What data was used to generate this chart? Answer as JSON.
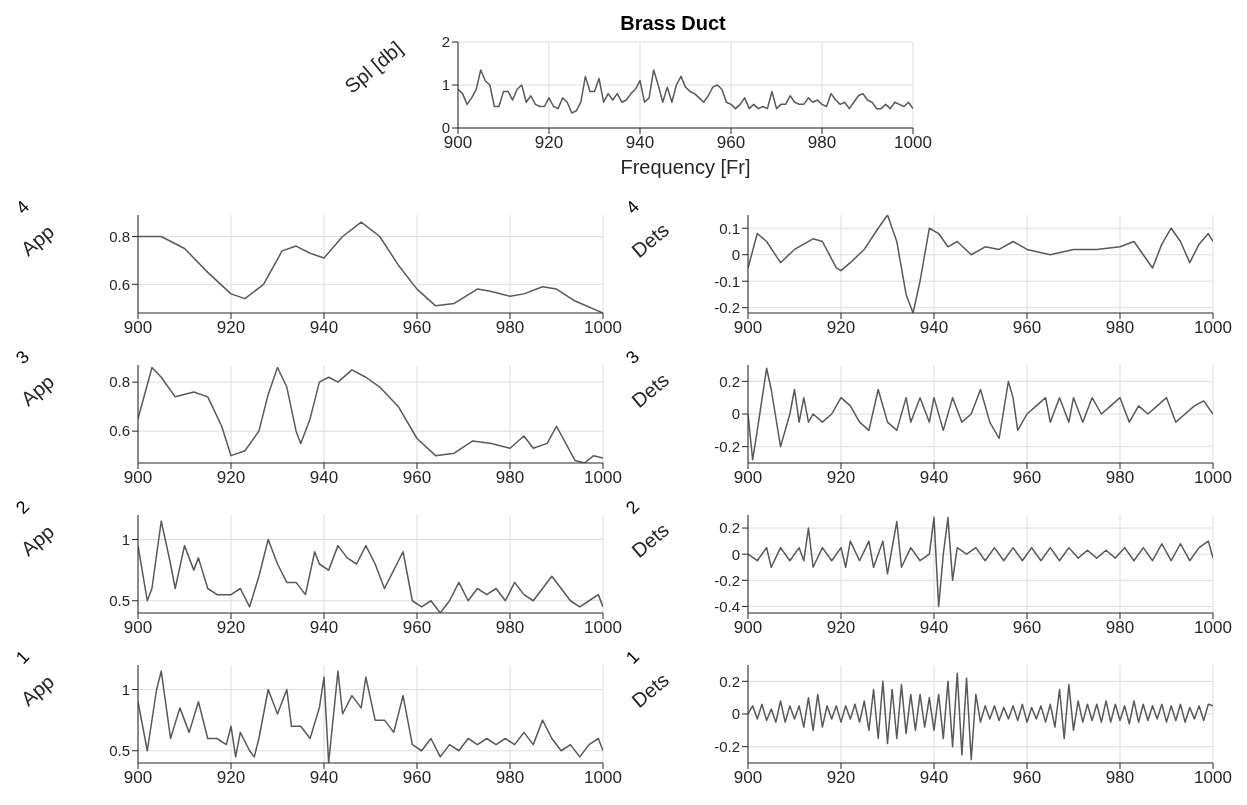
{
  "chart_data": [
    {
      "type": "line",
      "title": "Brass Duct",
      "xlabel": "Frequency [Fr]",
      "ylabel": "Spl [db]",
      "color": "#595959",
      "xlim": [
        900,
        1000
      ],
      "xticks": [
        900,
        920,
        940,
        960,
        980,
        1000
      ],
      "ylim": [
        0,
        2
      ],
      "yticks": [
        0,
        1,
        2
      ],
      "grid": true,
      "x": [
        900,
        901,
        902,
        903,
        904,
        905,
        906,
        907,
        908,
        909,
        910,
        911,
        912,
        913,
        914,
        915,
        916,
        917,
        918,
        919,
        920,
        921,
        922,
        923,
        924,
        925,
        926,
        927,
        928,
        929,
        930,
        931,
        932,
        933,
        934,
        935,
        936,
        937,
        938,
        939,
        940,
        941,
        942,
        943,
        944,
        945,
        946,
        947,
        948,
        949,
        950,
        951,
        952,
        953,
        954,
        955,
        956,
        957,
        958,
        959,
        960,
        961,
        962,
        963,
        964,
        965,
        966,
        967,
        968,
        969,
        970,
        971,
        972,
        973,
        974,
        975,
        976,
        977,
        978,
        979,
        980,
        981,
        982,
        983,
        984,
        985,
        986,
        987,
        988,
        989,
        990,
        991,
        992,
        993,
        994,
        995,
        996,
        997,
        998,
        999,
        1000
      ],
      "values": [
        0.9,
        0.8,
        0.55,
        0.7,
        0.9,
        1.35,
        1.1,
        1.0,
        0.5,
        0.5,
        0.85,
        0.85,
        0.65,
        0.9,
        1.0,
        0.6,
        0.75,
        0.55,
        0.5,
        0.5,
        0.7,
        0.5,
        0.45,
        0.7,
        0.6,
        0.35,
        0.4,
        0.6,
        1.2,
        0.85,
        0.85,
        1.15,
        0.6,
        0.8,
        0.65,
        0.8,
        0.6,
        0.65,
        0.8,
        0.9,
        1.1,
        0.6,
        0.7,
        1.35,
        1.0,
        0.6,
        0.95,
        0.6,
        1.0,
        1.2,
        0.95,
        0.85,
        0.8,
        0.7,
        0.6,
        0.75,
        0.95,
        1.0,
        0.9,
        0.6,
        0.55,
        0.45,
        0.55,
        0.7,
        0.45,
        0.55,
        0.45,
        0.5,
        0.45,
        0.85,
        0.45,
        0.55,
        0.55,
        0.75,
        0.6,
        0.55,
        0.55,
        0.7,
        0.6,
        0.65,
        0.55,
        0.5,
        0.8,
        0.65,
        0.55,
        0.6,
        0.45,
        0.6,
        0.75,
        0.8,
        0.65,
        0.6,
        0.45,
        0.45,
        0.55,
        0.45,
        0.6,
        0.55,
        0.5,
        0.6,
        0.45
      ]
    },
    {
      "type": "line",
      "title": "4",
      "ylabel": "App",
      "color": "#595959",
      "xlim": [
        900,
        1000
      ],
      "xticks": [
        900,
        920,
        940,
        960,
        980,
        1000
      ],
      "ylim": [
        0.48,
        0.89
      ],
      "yticks": [
        0.6,
        0.8
      ],
      "grid": true,
      "x": [
        900,
        905,
        910,
        915,
        920,
        923,
        927,
        931,
        934,
        937,
        940,
        944,
        948,
        952,
        956,
        960,
        964,
        968,
        973,
        976,
        980,
        983,
        987,
        990,
        994,
        1000
      ],
      "values": [
        0.8,
        0.8,
        0.75,
        0.65,
        0.56,
        0.54,
        0.6,
        0.74,
        0.76,
        0.73,
        0.71,
        0.8,
        0.86,
        0.8,
        0.68,
        0.58,
        0.51,
        0.52,
        0.58,
        0.57,
        0.55,
        0.56,
        0.59,
        0.58,
        0.53,
        0.48
      ]
    },
    {
      "type": "line",
      "title": "4",
      "ylabel": "Dets",
      "color": "#595959",
      "xlim": [
        900,
        1000
      ],
      "xticks": [
        900,
        920,
        940,
        960,
        980,
        1000
      ],
      "ylim": [
        -0.22,
        0.15
      ],
      "yticks": [
        -0.2,
        -0.1,
        0,
        0.1
      ],
      "grid": true,
      "x": [
        900,
        902,
        904,
        907,
        910,
        914,
        916,
        919,
        920,
        922,
        925,
        928,
        930,
        932,
        934,
        935.5,
        937,
        939,
        941,
        943,
        945,
        948,
        951,
        954,
        957,
        960,
        965,
        970,
        975,
        980,
        983,
        985,
        987,
        989,
        991,
        993,
        995,
        997,
        999,
        1000
      ],
      "values": [
        -0.05,
        0.08,
        0.05,
        -0.03,
        0.02,
        0.06,
        0.05,
        -0.05,
        -0.06,
        -0.03,
        0.02,
        0.1,
        0.15,
        0.05,
        -0.15,
        -0.22,
        -0.1,
        0.1,
        0.08,
        0.03,
        0.05,
        0.0,
        0.03,
        0.02,
        0.05,
        0.02,
        0.0,
        0.02,
        0.02,
        0.03,
        0.05,
        0.0,
        -0.05,
        0.04,
        0.1,
        0.05,
        -0.03,
        0.04,
        0.08,
        0.05
      ]
    },
    {
      "type": "line",
      "title": "3",
      "ylabel": "App",
      "color": "#595959",
      "xlim": [
        900,
        1000
      ],
      "xticks": [
        900,
        920,
        940,
        960,
        980,
        1000
      ],
      "ylim": [
        0.47,
        0.87
      ],
      "yticks": [
        0.6,
        0.8
      ],
      "grid": true,
      "x": [
        900,
        903,
        905,
        908,
        912,
        915,
        918,
        920,
        923,
        926,
        928,
        930,
        932,
        934,
        935,
        937,
        939,
        941,
        943,
        946,
        949,
        952,
        956,
        960,
        964,
        968,
        972,
        976,
        980,
        983,
        985,
        988,
        990,
        992,
        994,
        996,
        998,
        1000
      ],
      "values": [
        0.65,
        0.86,
        0.82,
        0.74,
        0.76,
        0.74,
        0.62,
        0.5,
        0.52,
        0.6,
        0.75,
        0.86,
        0.78,
        0.6,
        0.55,
        0.65,
        0.8,
        0.82,
        0.8,
        0.85,
        0.82,
        0.78,
        0.7,
        0.57,
        0.5,
        0.51,
        0.56,
        0.55,
        0.53,
        0.58,
        0.53,
        0.55,
        0.62,
        0.55,
        0.48,
        0.47,
        0.5,
        0.49
      ]
    },
    {
      "type": "line",
      "title": "3",
      "ylabel": "Dets",
      "color": "#595959",
      "xlim": [
        900,
        1000
      ],
      "xticks": [
        900,
        920,
        940,
        960,
        980,
        1000
      ],
      "ylim": [
        -0.3,
        0.3
      ],
      "yticks": [
        -0.2,
        0,
        0.2
      ],
      "grid": true,
      "x": [
        900,
        901,
        902,
        904,
        905,
        907,
        909,
        910,
        911,
        912,
        913,
        914,
        916,
        918,
        920,
        922,
        924,
        926,
        928,
        930,
        932,
        934,
        935,
        937,
        939,
        940,
        942,
        944,
        946,
        948,
        950,
        952,
        954,
        956,
        957,
        958,
        960,
        962,
        964,
        965,
        967,
        969,
        970,
        972,
        974,
        976,
        978,
        980,
        982,
        984,
        986,
        988,
        990,
        992,
        994,
        996,
        998,
        1000
      ],
      "values": [
        0.0,
        -0.28,
        -0.1,
        0.28,
        0.15,
        -0.2,
        0.0,
        0.15,
        -0.05,
        0.1,
        -0.05,
        0.0,
        -0.05,
        0.0,
        0.1,
        0.05,
        -0.05,
        -0.1,
        0.15,
        -0.05,
        -0.1,
        0.1,
        -0.05,
        0.1,
        -0.05,
        0.1,
        -0.1,
        0.1,
        -0.05,
        0.0,
        0.15,
        -0.05,
        -0.15,
        0.2,
        0.1,
        -0.1,
        0.0,
        0.05,
        0.1,
        -0.05,
        0.1,
        -0.05,
        0.1,
        -0.05,
        0.1,
        0.0,
        0.05,
        0.1,
        -0.05,
        0.05,
        0.0,
        0.05,
        0.1,
        -0.05,
        0.0,
        0.05,
        0.08,
        0.0
      ]
    },
    {
      "type": "line",
      "title": "2",
      "ylabel": "App",
      "color": "#595959",
      "xlim": [
        900,
        1000
      ],
      "xticks": [
        900,
        920,
        940,
        960,
        980,
        1000
      ],
      "ylim": [
        0.4,
        1.2
      ],
      "yticks": [
        0.5,
        1
      ],
      "grid": true,
      "x": [
        900,
        902,
        903,
        905,
        907,
        908,
        910,
        911,
        912,
        913,
        915,
        917,
        920,
        922,
        924,
        926,
        928,
        930,
        932,
        934,
        936,
        938,
        939,
        941,
        943,
        945,
        947,
        949,
        951,
        953,
        955,
        957,
        959,
        961,
        963,
        965,
        967,
        969,
        971,
        973,
        975,
        977,
        979,
        981,
        983,
        985,
        987,
        989,
        991,
        993,
        995,
        997,
        999,
        1000
      ],
      "values": [
        0.95,
        0.5,
        0.6,
        1.15,
        0.8,
        0.6,
        0.95,
        0.85,
        0.75,
        0.85,
        0.6,
        0.55,
        0.55,
        0.6,
        0.45,
        0.7,
        1.0,
        0.8,
        0.65,
        0.65,
        0.55,
        0.9,
        0.8,
        0.75,
        0.95,
        0.85,
        0.8,
        0.95,
        0.8,
        0.6,
        0.75,
        0.9,
        0.5,
        0.45,
        0.5,
        0.4,
        0.5,
        0.65,
        0.5,
        0.6,
        0.55,
        0.6,
        0.5,
        0.65,
        0.55,
        0.5,
        0.6,
        0.7,
        0.6,
        0.5,
        0.45,
        0.5,
        0.55,
        0.45
      ]
    },
    {
      "type": "line",
      "title": "2",
      "ylabel": "Dets",
      "color": "#595959",
      "xlim": [
        900,
        1000
      ],
      "xticks": [
        900,
        920,
        940,
        960,
        980,
        1000
      ],
      "ylim": [
        -0.45,
        0.3
      ],
      "yticks": [
        -0.4,
        -0.2,
        0,
        0.2
      ],
      "grid": true,
      "x": [
        900,
        902,
        904,
        905,
        907,
        909,
        911,
        912,
        913,
        914,
        916,
        918,
        920,
        921,
        922,
        924,
        926,
        927,
        929,
        930,
        932,
        933,
        935,
        937,
        939,
        940,
        941,
        942,
        943,
        944,
        945,
        947,
        949,
        951,
        953,
        955,
        957,
        959,
        961,
        963,
        965,
        967,
        969,
        971,
        973,
        975,
        977,
        979,
        981,
        983,
        985,
        987,
        989,
        991,
        993,
        995,
        997,
        999,
        1000
      ],
      "values": [
        0.0,
        -0.05,
        0.05,
        -0.1,
        0.05,
        -0.05,
        0.05,
        -0.05,
        0.2,
        -0.1,
        0.05,
        -0.05,
        0.05,
        -0.1,
        0.1,
        -0.05,
        0.1,
        -0.1,
        0.1,
        -0.15,
        0.25,
        -0.1,
        0.05,
        -0.05,
        0.0,
        0.28,
        -0.4,
        0.0,
        0.28,
        -0.2,
        0.05,
        0.0,
        0.05,
        -0.05,
        0.05,
        -0.05,
        0.05,
        -0.05,
        0.05,
        -0.05,
        0.05,
        -0.05,
        0.05,
        -0.03,
        0.03,
        -0.03,
        0.03,
        -0.03,
        0.05,
        -0.05,
        0.05,
        -0.05,
        0.08,
        -0.05,
        0.08,
        -0.05,
        0.05,
        0.1,
        -0.03
      ]
    },
    {
      "type": "line",
      "title": "1",
      "ylabel": "App",
      "color": "#595959",
      "xlim": [
        900,
        1000
      ],
      "xticks": [
        900,
        920,
        940,
        960,
        980,
        1000
      ],
      "ylim": [
        0.4,
        1.2
      ],
      "yticks": [
        0.5,
        1
      ],
      "grid": true,
      "x": [
        900,
        902,
        904,
        905,
        907,
        909,
        911,
        913,
        915,
        917,
        919,
        920,
        921,
        922,
        924,
        925,
        926,
        928,
        930,
        932,
        933,
        935,
        937,
        939,
        940,
        941,
        943,
        944,
        946,
        948,
        949,
        951,
        953,
        955,
        957,
        959,
        961,
        963,
        965,
        967,
        969,
        971,
        973,
        975,
        977,
        979,
        981,
        983,
        985,
        987,
        989,
        991,
        993,
        995,
        997,
        999,
        1000
      ],
      "values": [
        0.9,
        0.5,
        1.0,
        1.15,
        0.6,
        0.85,
        0.65,
        0.9,
        0.6,
        0.6,
        0.55,
        0.7,
        0.45,
        0.65,
        0.5,
        0.45,
        0.6,
        1.0,
        0.8,
        1.0,
        0.7,
        0.7,
        0.6,
        0.85,
        1.1,
        0.4,
        1.15,
        0.8,
        0.95,
        0.85,
        1.1,
        0.75,
        0.75,
        0.65,
        0.95,
        0.55,
        0.5,
        0.6,
        0.45,
        0.55,
        0.5,
        0.6,
        0.55,
        0.6,
        0.55,
        0.6,
        0.55,
        0.65,
        0.55,
        0.75,
        0.6,
        0.5,
        0.55,
        0.45,
        0.55,
        0.6,
        0.5
      ]
    },
    {
      "type": "line",
      "title": "1",
      "ylabel": "Dets",
      "color": "#595959",
      "xlim": [
        900,
        1000
      ],
      "xticks": [
        900,
        920,
        940,
        960,
        980,
        1000
      ],
      "ylim": [
        -0.3,
        0.3
      ],
      "yticks": [
        -0.2,
        0,
        0.2
      ],
      "grid": true,
      "x": [
        900,
        901,
        902,
        903,
        904,
        905,
        906,
        907,
        908,
        909,
        910,
        911,
        912,
        913,
        914,
        915,
        916,
        917,
        918,
        919,
        920,
        921,
        922,
        923,
        924,
        925,
        926,
        927,
        928,
        929,
        930,
        931,
        932,
        933,
        934,
        935,
        936,
        937,
        938,
        939,
        940,
        941,
        942,
        943,
        944,
        945,
        946,
        947,
        948,
        949,
        950,
        951,
        952,
        953,
        954,
        955,
        956,
        957,
        958,
        959,
        960,
        961,
        962,
        963,
        964,
        965,
        966,
        967,
        968,
        969,
        970,
        971,
        972,
        973,
        974,
        975,
        976,
        977,
        978,
        979,
        980,
        981,
        982,
        983,
        984,
        985,
        986,
        987,
        988,
        989,
        990,
        991,
        992,
        993,
        994,
        995,
        996,
        997,
        998,
        999,
        1000
      ],
      "values": [
        0.0,
        0.05,
        -0.03,
        0.06,
        -0.04,
        0.03,
        -0.05,
        0.08,
        -0.05,
        0.05,
        -0.03,
        0.05,
        -0.08,
        0.1,
        -0.1,
        0.12,
        -0.08,
        0.05,
        -0.03,
        0.05,
        -0.05,
        0.05,
        -0.03,
        0.06,
        -0.05,
        0.08,
        -0.1,
        0.15,
        -0.15,
        0.2,
        -0.18,
        0.15,
        -0.15,
        0.18,
        -0.12,
        0.12,
        -0.1,
        0.12,
        -0.08,
        0.1,
        -0.1,
        0.12,
        -0.15,
        0.2,
        -0.2,
        0.25,
        -0.25,
        0.22,
        -0.28,
        0.12,
        -0.05,
        0.05,
        -0.03,
        0.05,
        -0.04,
        0.04,
        -0.03,
        0.05,
        -0.04,
        0.06,
        -0.05,
        0.04,
        -0.03,
        0.05,
        -0.05,
        0.06,
        -0.08,
        0.15,
        -0.15,
        0.18,
        -0.1,
        0.08,
        -0.05,
        0.06,
        -0.04,
        0.06,
        -0.05,
        0.08,
        -0.05,
        0.06,
        -0.04,
        0.05,
        -0.06,
        0.08,
        -0.05,
        0.06,
        -0.04,
        0.05,
        -0.03,
        0.06,
        -0.05,
        0.05,
        -0.04,
        0.06,
        -0.05,
        0.04,
        -0.03,
        0.05,
        -0.04,
        0.06,
        0.05
      ]
    }
  ]
}
